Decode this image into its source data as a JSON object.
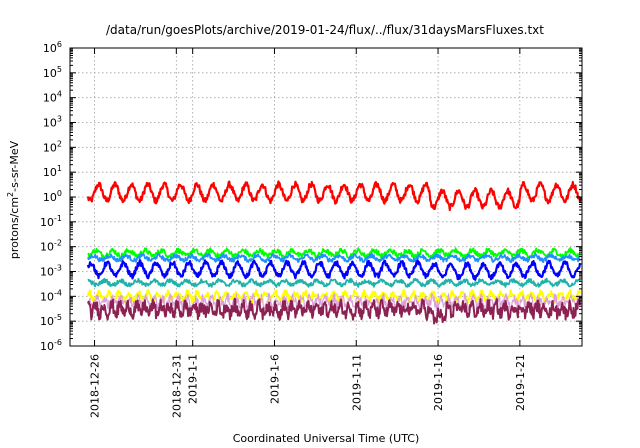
{
  "chart_data": {
    "type": "line",
    "title": "/data/run/goesPlots/archive/2019-01-24/flux/../flux/31daysMarsFluxes.txt",
    "xlabel": "Coordinated Universal Time (UTC)",
    "ylabel": "protons/cm²-s-sr-MeV",
    "ylabel_base": "protons/cm",
    "ylabel_sup": "2",
    "ylabel_rest": "-s-sr-MeV",
    "yscale": "log",
    "ylim": [
      1e-06,
      1000000.0
    ],
    "xlim": [
      -1.5,
      29.8
    ],
    "x_units": "days from 2018-12-26",
    "grid": true,
    "y_ticks": [
      {
        "base": "10",
        "exp": "-6",
        "value": -6
      },
      {
        "base": "10",
        "exp": "-5",
        "value": -5
      },
      {
        "base": "10",
        "exp": "-4",
        "value": -4
      },
      {
        "base": "10",
        "exp": "-3",
        "value": -3
      },
      {
        "base": "10",
        "exp": "-2",
        "value": -2
      },
      {
        "base": "10",
        "exp": "-1",
        "value": -1
      },
      {
        "base": "10",
        "exp": "0",
        "value": 0
      },
      {
        "base": "10",
        "exp": "1",
        "value": 1
      },
      {
        "base": "10",
        "exp": "2",
        "value": 2
      },
      {
        "base": "10",
        "exp": "3",
        "value": 3
      },
      {
        "base": "10",
        "exp": "4",
        "value": 4
      },
      {
        "base": "10",
        "exp": "5",
        "value": 5
      },
      {
        "base": "10",
        "exp": "6",
        "value": 6
      }
    ],
    "x_ticks": [
      {
        "label": "2018-12-26",
        "day": 0
      },
      {
        "label": "2018-12-31",
        "day": 5
      },
      {
        "label": "2019-1-1",
        "day": 6
      },
      {
        "label": "2019-1-6",
        "day": 11
      },
      {
        "label": "2019-1-11",
        "day": 16
      },
      {
        "label": "2019-1-16",
        "day": 21
      },
      {
        "label": "2019-1-21",
        "day": 26
      }
    ],
    "series": [
      {
        "color": "#ff0000",
        "width": 2.2,
        "base": 1.5,
        "amp": 0.55,
        "period": 1.0,
        "noise": 0.12,
        "drop": {
          "from": 20.5,
          "to": 26,
          "factor": 0.55
        }
      },
      {
        "color": "#00ff00",
        "width": 1.8,
        "base": 0.0055,
        "amp": 0.18,
        "period": 1.0,
        "noise": 0.1
      },
      {
        "color": "#1e90ff",
        "width": 1.8,
        "base": 0.0035,
        "amp": 0.15,
        "period": 1.0,
        "noise": 0.08
      },
      {
        "color": "#0000ff",
        "width": 2.2,
        "base": 0.0012,
        "amp": 0.45,
        "period": 1.0,
        "noise": 0.1,
        "drop": {
          "from": 20.5,
          "to": 26,
          "factor": 0.9
        }
      },
      {
        "color": "#20b2aa",
        "width": 1.8,
        "base": 0.00035,
        "amp": 0.15,
        "period": 1.0,
        "noise": 0.08
      },
      {
        "color": "#ffff00",
        "width": 2.0,
        "base": 0.0001,
        "amp": 0.25,
        "period": 0.6,
        "noise": 0.12
      },
      {
        "color": "#dda0dd",
        "width": 1.2,
        "base": 6e-05,
        "amp": 0.25,
        "period": 0.5,
        "noise": 0.2
      },
      {
        "color": "#8b2252",
        "width": 2.0,
        "base": 3e-05,
        "amp": 0.3,
        "period": 0.5,
        "noise": 0.25,
        "drop": {
          "from": 20.5,
          "to": 21.5,
          "factor": 0.5
        }
      }
    ]
  }
}
